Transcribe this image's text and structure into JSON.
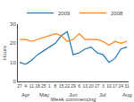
{
  "chart_data": {
    "type": "line",
    "xlabel": "Week commencing",
    "ylabel": "Hours",
    "categories": [
      "27",
      "4",
      "11",
      "18",
      "25",
      "1",
      "8",
      "15",
      "22",
      "29",
      "6",
      "13",
      "20",
      "27",
      "3",
      "10",
      "17",
      "24",
      "31"
    ],
    "series": [
      {
        "name": "2009",
        "values": [
          10,
          9,
          11,
          14,
          16,
          18,
          20,
          24,
          26,
          14,
          15,
          17,
          18,
          15,
          14,
          10,
          12,
          17,
          18
        ]
      },
      {
        "name": "2008",
        "values": [
          22,
          22,
          21,
          22,
          23,
          24,
          25,
          24,
          21,
          22,
          25,
          22,
          22,
          22,
          21,
          19,
          21,
          20,
          21
        ]
      }
    ],
    "annotations": [
      {
        "text": "Apr",
        "index": 0
      },
      {
        "text": "May",
        "index": 3
      },
      {
        "text": "Jun",
        "index": 8
      },
      {
        "text": "Jul",
        "index": 13
      },
      {
        "text": "Aug",
        "index": 17
      }
    ],
    "ylim": [
      0,
      30
    ],
    "yticks": [
      0,
      10,
      20,
      30
    ],
    "grid": false,
    "legend": "upper right"
  }
}
